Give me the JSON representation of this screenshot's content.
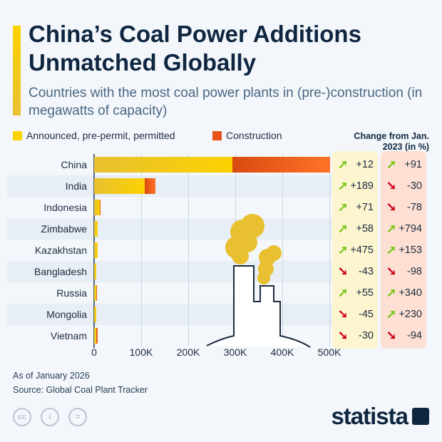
{
  "title": "China’s Coal Power Additions Unmatched Globally",
  "subtitle": "Countries with the most coal power plants in (pre-)construction (in megawatts of capacity)",
  "change_header": "Change from Jan. 2023 (in %)",
  "footnote": "As of January 2026",
  "source": "Source: Global Coal Plant Tracker",
  "brand": "statista",
  "colors": {
    "announced": "#fcd200",
    "construction": "#e8531a",
    "up": "#7bc619",
    "down": "#d0001a"
  },
  "chart_data": {
    "type": "bar",
    "orientation": "horizontal",
    "stacked": true,
    "categories": [
      "China",
      "India",
      "Indonesia",
      "Zimbabwe",
      "Kazakhstan",
      "Bangladesh",
      "Russia",
      "Mongolia",
      "Vietnam"
    ],
    "series": [
      {
        "name": "Announced, pre-permit, permitted",
        "values": [
          294000,
          107000,
          12000,
          8000,
          7000,
          4000,
          5000,
          4000,
          5000
        ]
      },
      {
        "name": "Construction",
        "values": [
          207000,
          24000,
          2000,
          0,
          0,
          1000,
          1000,
          0,
          3000
        ]
      }
    ],
    "xlim": [
      0,
      500000
    ],
    "xticks": [
      "0",
      "100K",
      "200K",
      "300K",
      "400K",
      "500K"
    ],
    "legend": "top-left",
    "grid": true,
    "change_columns": [
      [
        "+12",
        "+189",
        "+71",
        "+58",
        "+475",
        "-43",
        "+55",
        "-45",
        "-30"
      ],
      [
        "+91",
        "-30",
        "-78",
        "+794",
        "+153",
        "-98",
        "+340",
        "+230",
        "-94"
      ]
    ]
  }
}
